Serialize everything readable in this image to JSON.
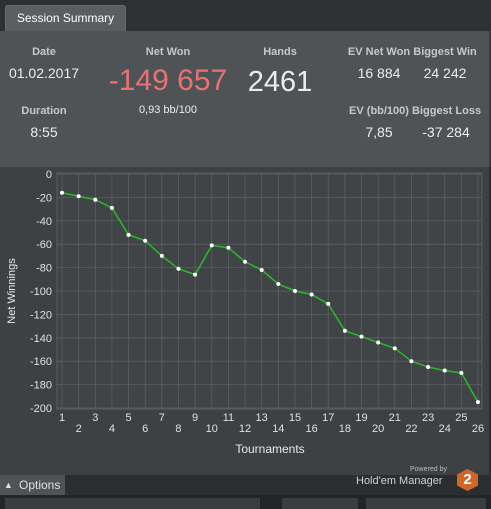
{
  "tab": {
    "label": "Session Summary"
  },
  "summary": {
    "date_label": "Date",
    "date_value": "01.02.2017",
    "duration_label": "Duration",
    "duration_value": "8:55",
    "net_won_label": "Net Won",
    "net_won_value": "-149 657",
    "net_won_rate": "0,93 bb/100",
    "hands_label": "Hands",
    "hands_value": "2461",
    "ev_net_won_label": "EV Net Won",
    "ev_net_won_value": "16 884",
    "ev_bb_label": "EV (bb/100)",
    "ev_bb_value": "7,85",
    "biggest_win_label": "Biggest Win",
    "biggest_win_value": "24 242",
    "biggest_loss_label": "Biggest Loss",
    "biggest_loss_value": "-37 284"
  },
  "colors": {
    "net_won": "#e57373",
    "line": "#2fb02f",
    "point": "#ffffff"
  },
  "chart_data": {
    "type": "line",
    "xlabel": "Tournaments",
    "ylabel": "Net Winnings",
    "xlim": [
      1,
      26
    ],
    "ylim": [
      -200,
      0
    ],
    "y_ticks": [
      0,
      -20,
      -40,
      -60,
      -80,
      -100,
      -120,
      -140,
      -160,
      -180,
      -200
    ],
    "x_ticks": [
      1,
      2,
      3,
      4,
      5,
      6,
      7,
      8,
      9,
      10,
      11,
      12,
      13,
      14,
      15,
      16,
      17,
      18,
      19,
      20,
      21,
      22,
      23,
      24,
      25,
      26
    ],
    "grid": true,
    "x": [
      1,
      2,
      3,
      4,
      5,
      6,
      7,
      8,
      9,
      10,
      11,
      12,
      13,
      14,
      15,
      16,
      17,
      18,
      19,
      20,
      21,
      22,
      23,
      24,
      25,
      26
    ],
    "values": [
      -16,
      -19,
      -22,
      -29,
      -52,
      -57,
      -70,
      -81,
      -86,
      -61,
      -63,
      -75,
      -82,
      -94,
      -100,
      -103,
      -111,
      -134,
      -139,
      -144,
      -149,
      -160,
      -165,
      -168,
      -170,
      -195
    ]
  },
  "options": {
    "label": "Options"
  },
  "branding": {
    "powered_by": "Powered by",
    "name": "Hold'em Manager",
    "badge": "2"
  }
}
